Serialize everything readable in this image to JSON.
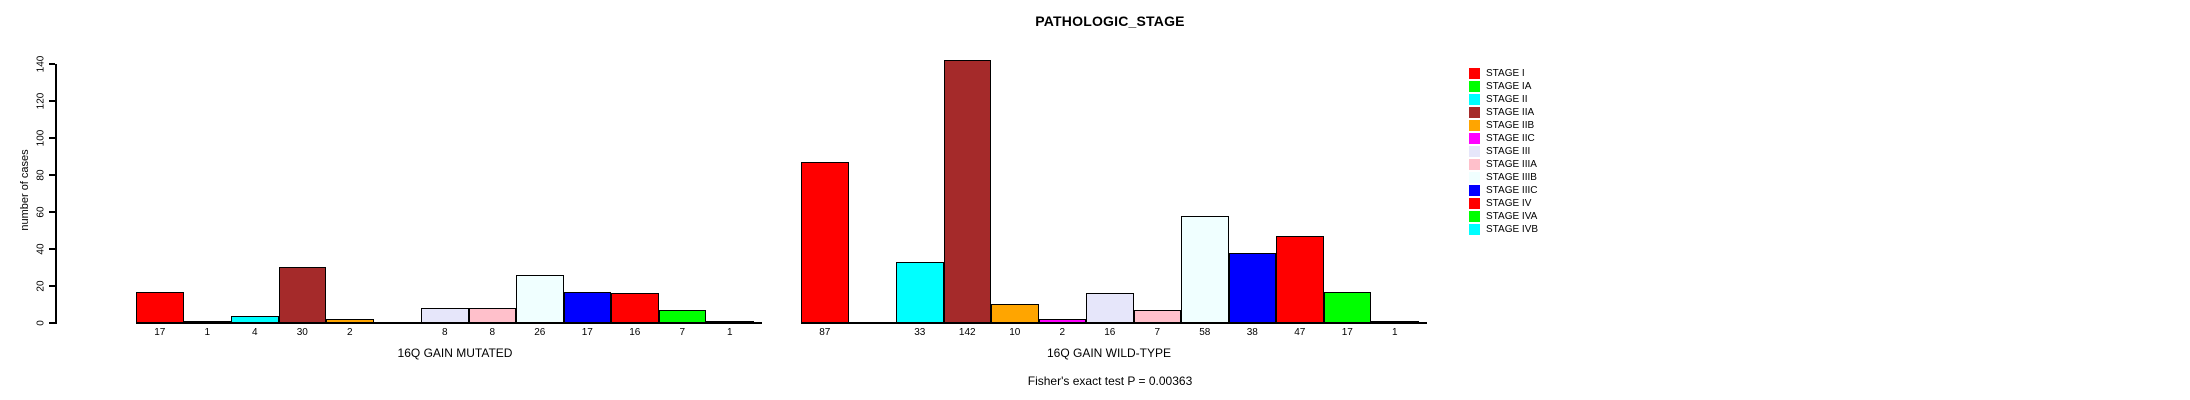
{
  "chart_data": {
    "type": "bar",
    "title": "PATHOLOGIC_STAGE",
    "ylabel": "number of cases",
    "ylim": [
      0,
      140
    ],
    "yticks": [
      0,
      20,
      40,
      60,
      80,
      100,
      120,
      140
    ],
    "grid": false,
    "legend_position": "right",
    "categories": [
      "STAGE I",
      "STAGE IA",
      "STAGE II",
      "STAGE IIA",
      "STAGE IIB",
      "STAGE IIC",
      "STAGE III",
      "STAGE IIIA",
      "STAGE IIIB",
      "STAGE IIIC",
      "STAGE IV",
      "STAGE IVA",
      "STAGE IVB"
    ],
    "palette": [
      "#FF0000",
      "#00FF00",
      "#00FFFF",
      "#A52A2A",
      "#FFA500",
      "#FF00FF",
      "#E6E6FA",
      "#FFC0CB",
      "#F0FFFF",
      "#0000FF",
      "#FF0000",
      "#00FF00",
      "#00FFFF"
    ],
    "groups": [
      {
        "label": "16Q GAIN MUTATED",
        "values": [
          17,
          1,
          4,
          30,
          2,
          0,
          8,
          8,
          26,
          17,
          16,
          7,
          1
        ]
      },
      {
        "label": "16Q GAIN WILD-TYPE",
        "values": [
          87,
          0,
          33,
          142,
          10,
          2,
          16,
          7,
          58,
          38,
          47,
          17,
          1
        ]
      }
    ],
    "annotation": "Fisher's exact test P = 0.00363",
    "axis_color": "#000000",
    "background_color": "#FFFFFF"
  }
}
